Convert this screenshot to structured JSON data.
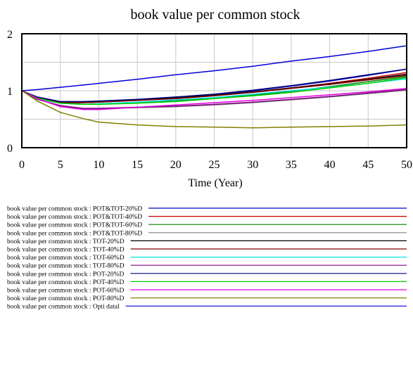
{
  "chart_data": {
    "type": "line",
    "title": "book value per common stock",
    "xlabel": "Time (Year)",
    "ylabel": "",
    "xlim": [
      0,
      50
    ],
    "ylim": [
      0,
      2
    ],
    "xticks": [
      "0",
      "5",
      "10",
      "15",
      "20",
      "25",
      "30",
      "35",
      "40",
      "45",
      "50"
    ],
    "yticks": [
      "0",
      "1",
      "2"
    ],
    "grid": true,
    "legend_placement": "bottom",
    "x": [
      0,
      2,
      5,
      8,
      10,
      15,
      20,
      25,
      30,
      35,
      40,
      45,
      50
    ],
    "series": [
      {
        "name": "book value per common stock : POT&TOT-20%D",
        "color": "#0000cc",
        "values": [
          1,
          0.88,
          0.8,
          0.8,
          0.81,
          0.84,
          0.88,
          0.93,
          1.0,
          1.08,
          1.17,
          1.27,
          1.38
        ]
      },
      {
        "name": "book value per common stock : POT&TOT-40%D",
        "color": "#cc0000",
        "values": [
          1,
          0.87,
          0.79,
          0.79,
          0.8,
          0.83,
          0.87,
          0.92,
          0.98,
          1.05,
          1.13,
          1.22,
          1.32
        ]
      },
      {
        "name": "book value per common stock : POT&TOT-60%D",
        "color": "#008000",
        "values": [
          1,
          0.86,
          0.78,
          0.76,
          0.77,
          0.79,
          0.83,
          0.87,
          0.92,
          0.99,
          1.07,
          1.16,
          1.25
        ]
      },
      {
        "name": "book value per common stock : POT&TOT-80%D",
        "color": "#808080",
        "values": [
          1,
          0.85,
          0.74,
          0.69,
          0.69,
          0.7,
          0.72,
          0.75,
          0.79,
          0.84,
          0.89,
          0.95,
          1.01
        ]
      },
      {
        "name": "book value per common stock : TOT-20%D",
        "color": "#000000",
        "values": [
          1,
          0.87,
          0.8,
          0.8,
          0.81,
          0.84,
          0.88,
          0.92,
          0.98,
          1.05,
          1.12,
          1.2,
          1.29
        ]
      },
      {
        "name": "book value per common stock : TOT-40%D",
        "color": "#800000",
        "values": [
          1,
          0.87,
          0.79,
          0.79,
          0.8,
          0.83,
          0.86,
          0.91,
          0.97,
          1.04,
          1.11,
          1.19,
          1.27
        ]
      },
      {
        "name": "book value per common stock : TOT-60%D",
        "color": "#00e5e5",
        "values": [
          1,
          0.86,
          0.78,
          0.76,
          0.77,
          0.8,
          0.84,
          0.88,
          0.94,
          1.0,
          1.06,
          1.13,
          1.21
        ]
      },
      {
        "name": "book value per common stock : TOT-80%D",
        "color": "#800080",
        "values": [
          1,
          0.85,
          0.74,
          0.69,
          0.69,
          0.71,
          0.73,
          0.76,
          0.8,
          0.85,
          0.9,
          0.96,
          1.02
        ]
      },
      {
        "name": "book value per common stock : POT-20%D",
        "color": "#000080",
        "values": [
          1,
          0.89,
          0.81,
          0.81,
          0.82,
          0.85,
          0.89,
          0.94,
          1.01,
          1.09,
          1.18,
          1.28,
          1.38
        ]
      },
      {
        "name": "book value per common stock : POT-40%D",
        "color": "#00cc00",
        "values": [
          1,
          0.87,
          0.78,
          0.76,
          0.76,
          0.78,
          0.81,
          0.86,
          0.91,
          0.97,
          1.05,
          1.13,
          1.23
        ]
      },
      {
        "name": "book value per common stock : POT-60%D",
        "color": "#e000e0",
        "values": [
          1,
          0.86,
          0.72,
          0.67,
          0.67,
          0.71,
          0.75,
          0.79,
          0.83,
          0.88,
          0.93,
          0.98,
          1.04
        ]
      },
      {
        "name": "book value per common stock : POT-80%D",
        "color": "#808000",
        "values": [
          1,
          0.82,
          0.62,
          0.51,
          0.45,
          0.4,
          0.37,
          0.36,
          0.35,
          0.36,
          0.37,
          0.38,
          0.4
        ]
      },
      {
        "name": "book value per common stock : Opti datal",
        "color": "#0000dd",
        "values": [
          1,
          1.02,
          1.06,
          1.1,
          1.13,
          1.2,
          1.28,
          1.35,
          1.43,
          1.52,
          1.6,
          1.69,
          1.79
        ]
      }
    ]
  }
}
